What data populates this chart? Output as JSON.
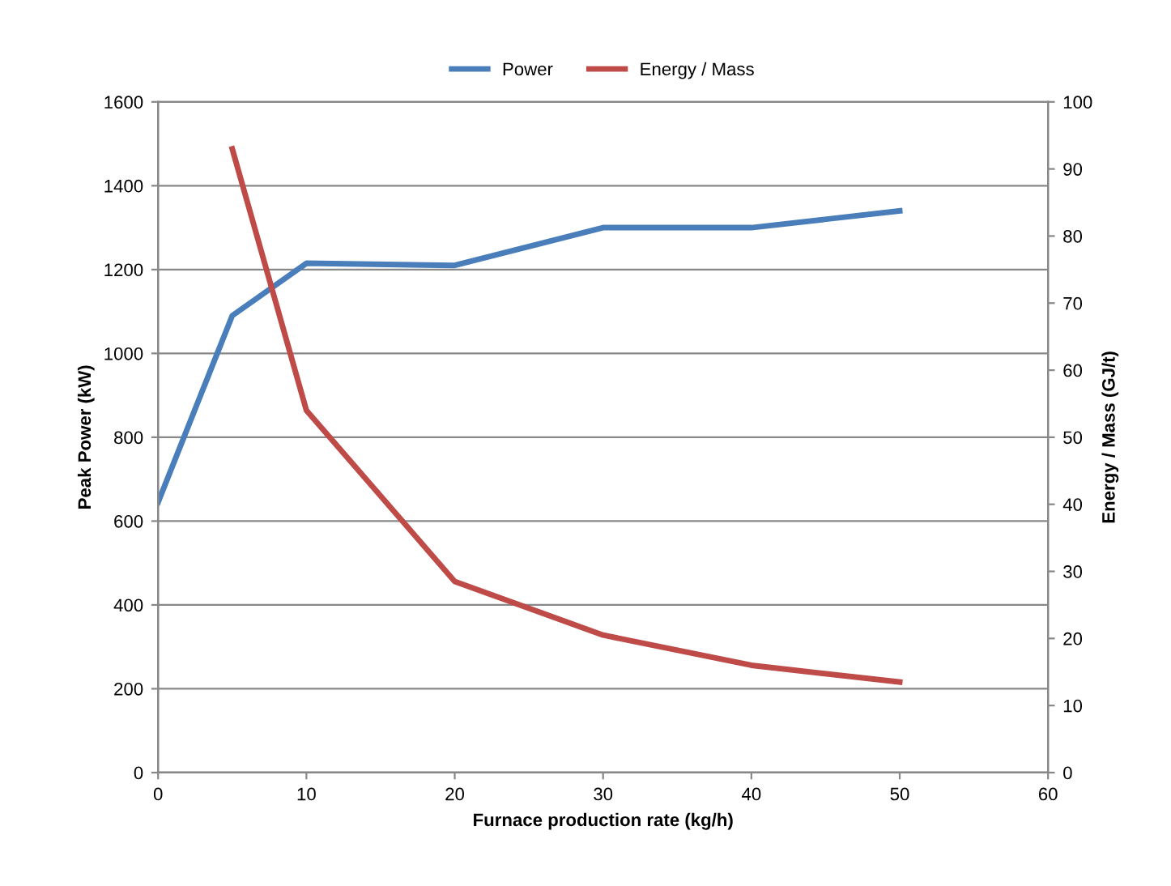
{
  "chart_data": {
    "type": "line",
    "xlabel": "Furnace production rate (kg/h)",
    "ylabel": "Peak Power (kW)",
    "y2label": "Energy / Mass (GJ/t)",
    "series": [
      {
        "name": "Power",
        "color": "#4a7ebb",
        "x": [
          0,
          5,
          10,
          20,
          30,
          40,
          50
        ],
        "values": [
          645,
          1090,
          1215,
          1210,
          1300,
          1300,
          1340
        ]
      },
      {
        "name": "Energy / Mass",
        "color": "#be4b48",
        "axis": "y2",
        "x": [
          5,
          10,
          20,
          30,
          40,
          50
        ],
        "values": [
          93,
          54,
          28.5,
          20.5,
          16,
          13.5
        ]
      }
    ],
    "xlim": [
      0,
      60
    ],
    "xticks": [
      0,
      10,
      20,
      30,
      40,
      50,
      60
    ],
    "ylim": [
      0,
      1600
    ],
    "yticks": [
      0,
      200,
      400,
      600,
      800,
      1000,
      1200,
      1400,
      1600
    ],
    "y2lim": [
      0,
      100
    ],
    "y2ticks": [
      0,
      10,
      20,
      30,
      40,
      50,
      60,
      70,
      80,
      90,
      100
    ],
    "grid": "y",
    "legend": "top",
    "marker": "none",
    "line_style": "solid"
  }
}
